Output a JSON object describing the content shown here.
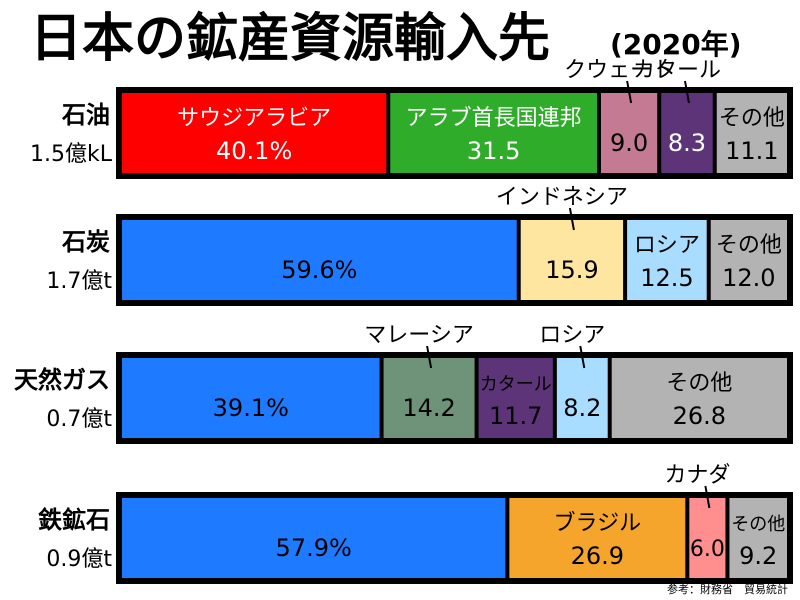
{
  "chart_data": {
    "type": "bar",
    "orientation": "horizontal",
    "stacked": true,
    "normalized": true,
    "title": "日本の鉱産資源輸入先",
    "title_year": "(2020年)",
    "source": "参考：財務省　貿易統計",
    "rows": [
      {
        "name": "石油",
        "total": "1.5億kL",
        "segments": [
          {
            "label": "サウジアラビア",
            "value": 40.1,
            "value_text": "40.1%",
            "color": "#ff0000",
            "text_color": "#ffffff"
          },
          {
            "label": "アラブ首長国連邦",
            "value": 31.5,
            "value_text": "31.5",
            "color": "#2fad2a",
            "text_color": "#ffffff"
          },
          {
            "label": "クウェート",
            "value": 9.0,
            "value_text": "9.0",
            "color": "#c47a93",
            "text_color": "#000000",
            "callout": true
          },
          {
            "label": "カタール",
            "value": 8.3,
            "value_text": "8.3",
            "color": "#5e3479",
            "text_color": "#ffffff",
            "callout": true
          },
          {
            "label": "その他",
            "value": 11.1,
            "value_text": "11.1",
            "color": "#b3b3b3",
            "text_color": "#000000"
          }
        ]
      },
      {
        "name": "石炭",
        "total": "1.7億t",
        "segments": [
          {
            "label": "",
            "value": 59.6,
            "value_text": "59.6%",
            "color": "#1e7bff",
            "text_color": "#000000"
          },
          {
            "label": "インドネシア",
            "value": 15.9,
            "value_text": "15.9",
            "color": "#fee6a0",
            "text_color": "#000000",
            "callout": true
          },
          {
            "label": "ロシア",
            "value": 12.5,
            "value_text": "12.5",
            "color": "#a9ddff",
            "text_color": "#000000"
          },
          {
            "label": "その他",
            "value": 12.0,
            "value_text": "12.0",
            "color": "#b3b3b3",
            "text_color": "#000000"
          }
        ]
      },
      {
        "name": "天然ガス",
        "total": "0.7億t",
        "segments": [
          {
            "label": "",
            "value": 39.1,
            "value_text": "39.1%",
            "color": "#1e7bff",
            "text_color": "#000000"
          },
          {
            "label": "マレーシア",
            "value": 14.2,
            "value_text": "14.2",
            "color": "#6f9378",
            "text_color": "#000000",
            "callout": true
          },
          {
            "label": "カタール",
            "value": 11.7,
            "value_text": "11.7",
            "color": "#5e3479",
            "text_color": "#000000"
          },
          {
            "label": "ロシア",
            "value": 8.2,
            "value_text": "8.2",
            "color": "#a9ddff",
            "text_color": "#000000",
            "callout": true
          },
          {
            "label": "その他",
            "value": 26.8,
            "value_text": "26.8",
            "color": "#b3b3b3",
            "text_color": "#000000"
          }
        ]
      },
      {
        "name": "鉄鉱石",
        "total": "0.9億t",
        "segments": [
          {
            "label": "",
            "value": 57.9,
            "value_text": "57.9%",
            "color": "#1e7bff",
            "text_color": "#000000"
          },
          {
            "label": "ブラジル",
            "value": 26.9,
            "value_text": "26.9",
            "color": "#f5a52b",
            "text_color": "#000000"
          },
          {
            "label": "カナダ",
            "value": 6.0,
            "value_text": "6.0",
            "color": "#ff8f8f",
            "text_color": "#000000",
            "callout": true
          },
          {
            "label": "その他",
            "value": 9.2,
            "value_text": "9.2",
            "color": "#b3b3b3",
            "text_color": "#000000"
          }
        ]
      }
    ]
  }
}
